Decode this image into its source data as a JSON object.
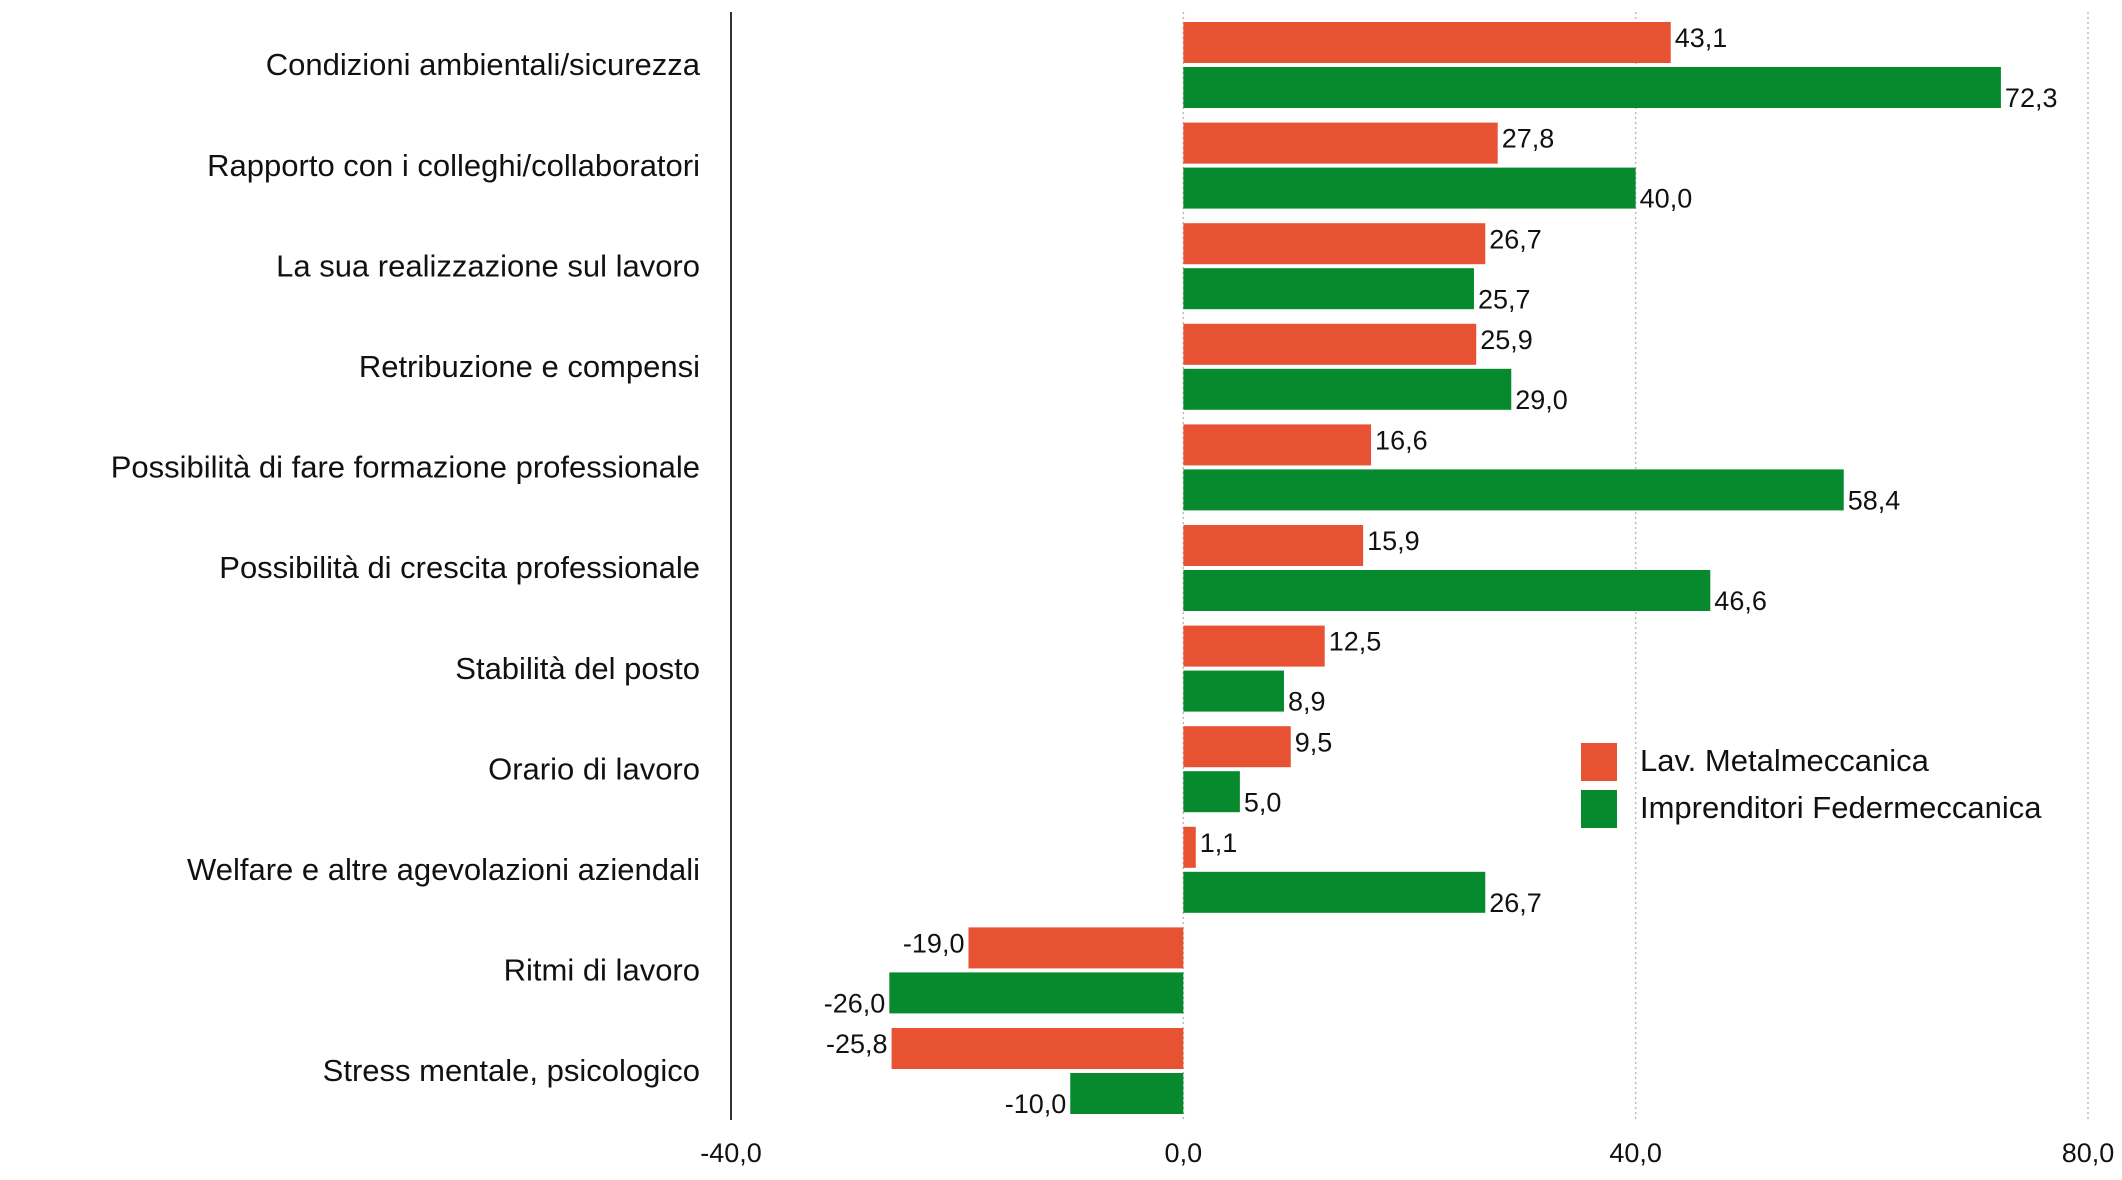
{
  "chart_data": {
    "type": "hbar",
    "categories": [
      "Condizioni ambientali/sicurezza",
      "Rapporto con i colleghi/collaboratori",
      "La sua realizzazione sul lavoro",
      "Retribuzione e compensi",
      "Possibilità di fare formazione professionale",
      "Possibilità di crescita professionale",
      "Stabilità del posto",
      "Orario di lavoro",
      "Welfare e altre agevolazioni aziendali",
      "Ritmi di lavoro",
      "Stress mentale, psicologico"
    ],
    "series": [
      {
        "name": "Lav. Metalmeccanica",
        "color": "#e65232",
        "values": [
          43.1,
          27.8,
          26.7,
          25.9,
          16.6,
          15.9,
          12.5,
          9.5,
          1.1,
          -19.0,
          -25.8
        ],
        "value_labels": [
          "43,1",
          "27,8",
          "26,7",
          "25,9",
          "16,6",
          "15,9",
          "12,5",
          "9,5",
          "1,1",
          "-19,0",
          "-25,8"
        ]
      },
      {
        "name": "Imprenditori Federmeccanica",
        "color": "#068a2d",
        "values": [
          72.3,
          40.0,
          25.7,
          29.0,
          58.4,
          46.6,
          8.9,
          5.0,
          26.7,
          -26.0,
          -10.0
        ],
        "value_labels": [
          "72,3",
          "40,0",
          "25,7",
          "29,0",
          "58,4",
          "46,6",
          "8,9",
          "5,0",
          "26,7",
          "-26,0",
          "-10,0"
        ]
      }
    ],
    "xlim": [
      -40,
      80
    ],
    "xticks": [
      {
        "value": -40,
        "label": "-40,0"
      },
      {
        "value": 0,
        "label": "0,0"
      },
      {
        "value": 40,
        "label": "40,0"
      },
      {
        "value": 80,
        "label": "80,0"
      }
    ],
    "grid": true,
    "legend": "right"
  }
}
